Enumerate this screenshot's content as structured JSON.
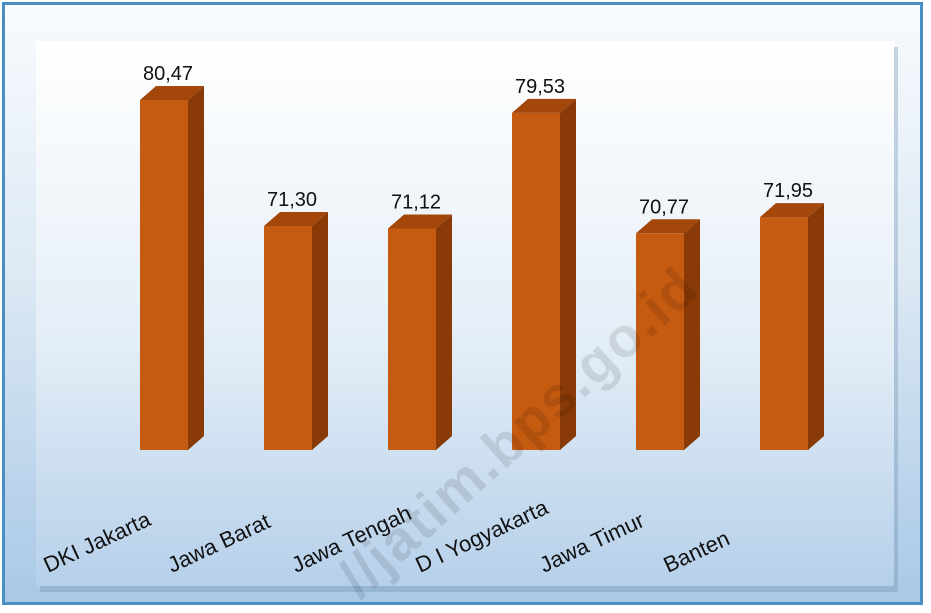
{
  "chart_data": {
    "type": "bar",
    "categories": [
      "DKI Jakarta",
      "Jawa Barat",
      "Jawa Tengah",
      "D I Yogyakarta",
      "Jawa Timur",
      "Banten"
    ],
    "values": [
      80.47,
      71.3,
      71.12,
      79.53,
      70.77,
      71.95
    ],
    "value_labels": [
      "80,47",
      "71,30",
      "71,12",
      "79,53",
      "70,77",
      "71,95"
    ],
    "bar_color": "#c55a11",
    "bar_side_color": "#8a3a06",
    "bar_top_color": "#a4470b",
    "three_d": true,
    "ylim": [
      55,
      82
    ],
    "grid": false,
    "legend": "none"
  },
  "watermark": "//jatim.bps.go.id"
}
